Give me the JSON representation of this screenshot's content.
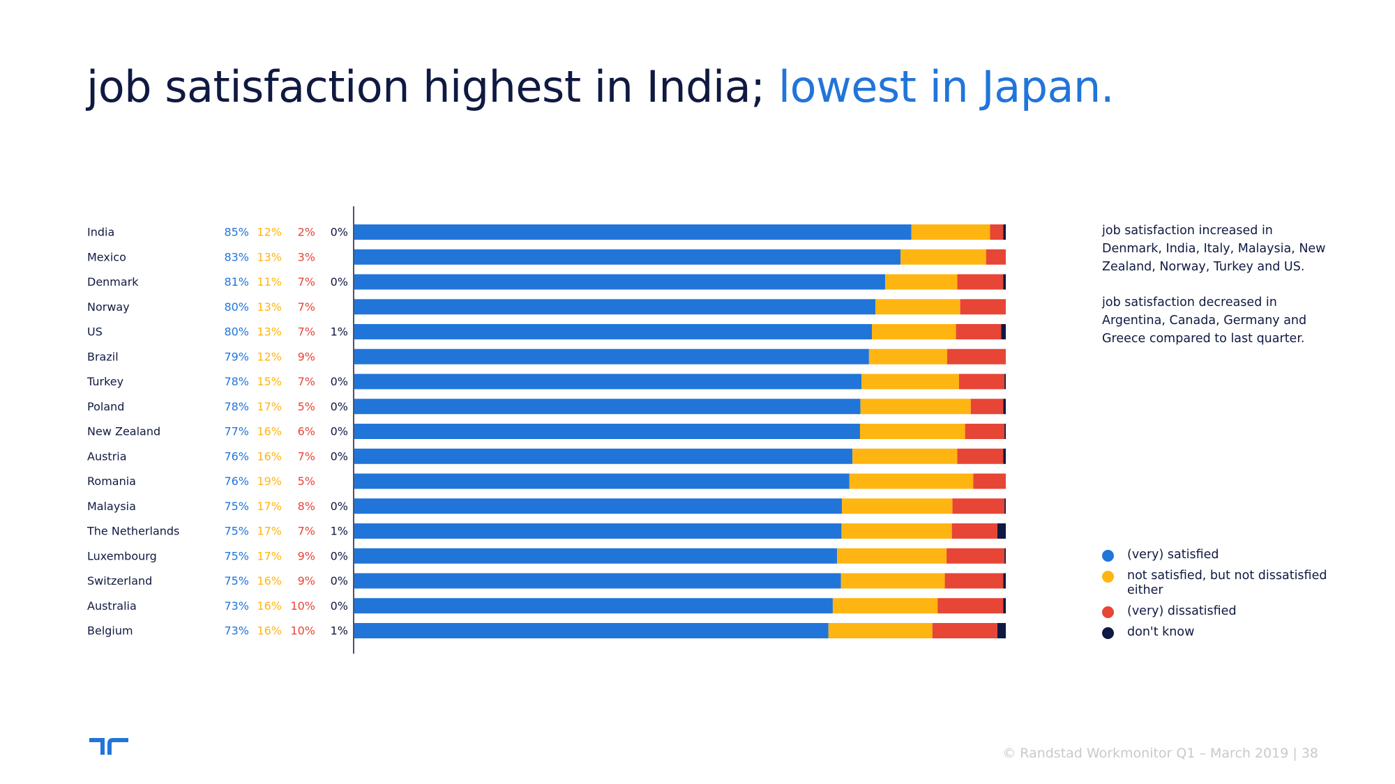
{
  "title": {
    "part1": "job satisfaction highest in India; ",
    "part2": "lowest in Japan."
  },
  "colors": {
    "satisfied": "#2175d9",
    "neutral": "#ffb511",
    "dissatisfied": "#e74536",
    "dont_know": "#0f1941",
    "title_dark": "#0f1941",
    "title_accent": "#2175d9"
  },
  "chart_data": {
    "type": "bar",
    "orientation": "horizontal",
    "stacked": true,
    "categories": [
      "India",
      "Mexico",
      "Denmark",
      "Norway",
      "US",
      "Brazil",
      "Turkey",
      "Poland",
      "New Zealand",
      "Austria",
      "Romania",
      "Malaysia",
      "The Netherlands",
      "Luxembourg",
      "Switzerland",
      "Australia",
      "Belgium"
    ],
    "series": [
      {
        "name": "(very) satisfied",
        "values": [
          85,
          83,
          81,
          80,
          80,
          79,
          78,
          78,
          77,
          76,
          76,
          75,
          75,
          75,
          75,
          73,
          73
        ]
      },
      {
        "name": "not satisfied, but not dissatisfied either",
        "values": [
          12,
          13,
          11,
          13,
          13,
          12,
          15,
          17,
          16,
          16,
          19,
          17,
          17,
          17,
          16,
          16,
          16
        ]
      },
      {
        "name": "(very) dissatisfied",
        "values": [
          2,
          3,
          7,
          7,
          7,
          9,
          7,
          5,
          6,
          7,
          5,
          8,
          7,
          9,
          9,
          10,
          10
        ]
      },
      {
        "name": "don't know",
        "values": [
          0.4,
          0,
          0.4,
          0,
          0.7,
          0,
          0.2,
          0.4,
          0.2,
          0.4,
          0,
          0.2,
          1.3,
          0.2,
          0.4,
          0.4,
          1.3
        ]
      }
    ],
    "labels": {
      "satisfied": [
        "85%",
        "83%",
        "81%",
        "80%",
        "80%",
        "79%",
        "78%",
        "78%",
        "77%",
        "76%",
        "76%",
        "75%",
        "75%",
        "75%",
        "75%",
        "73%",
        "73%"
      ],
      "neutral": [
        "12%",
        "13%",
        "11%",
        "13%",
        "13%",
        "12%",
        "15%",
        "17%",
        "16%",
        "16%",
        "19%",
        "17%",
        "17%",
        "17%",
        "16%",
        "16%",
        "16%"
      ],
      "dissatisfied": [
        "2%",
        "3%",
        "7%",
        "7%",
        "7%",
        "9%",
        "7%",
        "5%",
        "6%",
        "7%",
        "5%",
        "8%",
        "7%",
        "9%",
        "9%",
        "10%",
        "10%"
      ],
      "dont_know": [
        "0%",
        "",
        "0%",
        "",
        "1%",
        "",
        "0%",
        "0%",
        "0%",
        "0%",
        "",
        "0%",
        "1%",
        "0%",
        "0%",
        "0%",
        "1%"
      ]
    },
    "xlim": [
      0,
      100
    ],
    "legend_position": "right"
  },
  "legend": [
    {
      "label": "(very) satisfied",
      "color": "#2175d9"
    },
    {
      "label": "not satisfied, but not dissatisfied either",
      "color": "#ffb511"
    },
    {
      "label": "(very) dissatisfied",
      "color": "#e74536"
    },
    {
      "label": "don't know",
      "color": "#0f1941"
    }
  ],
  "notes": {
    "increased": "job satisfaction increased in Denmark, India, Italy, Malaysia, New Zealand, Norway, Turkey and US.",
    "decreased": "job satisfaction decreased in Argentina, Canada, Germany and Greece compared to last quarter."
  },
  "footer": "© Randstad Workmonitor Q1 – March 2019  |  38"
}
